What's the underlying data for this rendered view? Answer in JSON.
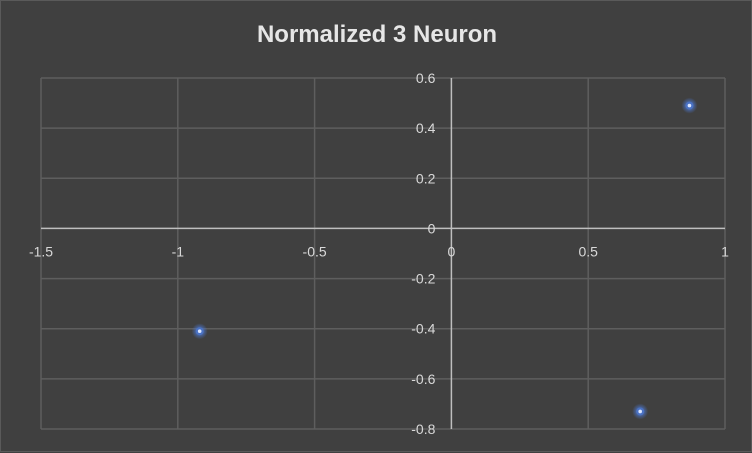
{
  "chart_data": {
    "type": "scatter",
    "title": "Normalized 3 Neuron",
    "xlabel": "",
    "ylabel": "",
    "xlim": [
      -1.5,
      1
    ],
    "ylim": [
      -0.8,
      0.6
    ],
    "x_ticks": [
      "-1.5",
      "-1",
      "-0.5",
      "0",
      "0.5",
      "1"
    ],
    "y_ticks": [
      "0.6",
      "0.4",
      "0.2",
      "0",
      "-0.2",
      "-0.4",
      "-0.6",
      "-0.8"
    ],
    "grid": true,
    "series": [
      {
        "points": [
          {
            "x": 0.87,
            "y": 0.49
          },
          {
            "x": -0.92,
            "y": -0.41
          },
          {
            "x": 0.69,
            "y": -0.73
          }
        ]
      }
    ],
    "colors": {
      "background": "#404040",
      "grid": "#5e5e5e",
      "axis": "#bfbfbf",
      "marker": "#4a72c4",
      "marker_glow": "#8fb0ff",
      "text": "#d9d9d9"
    }
  }
}
